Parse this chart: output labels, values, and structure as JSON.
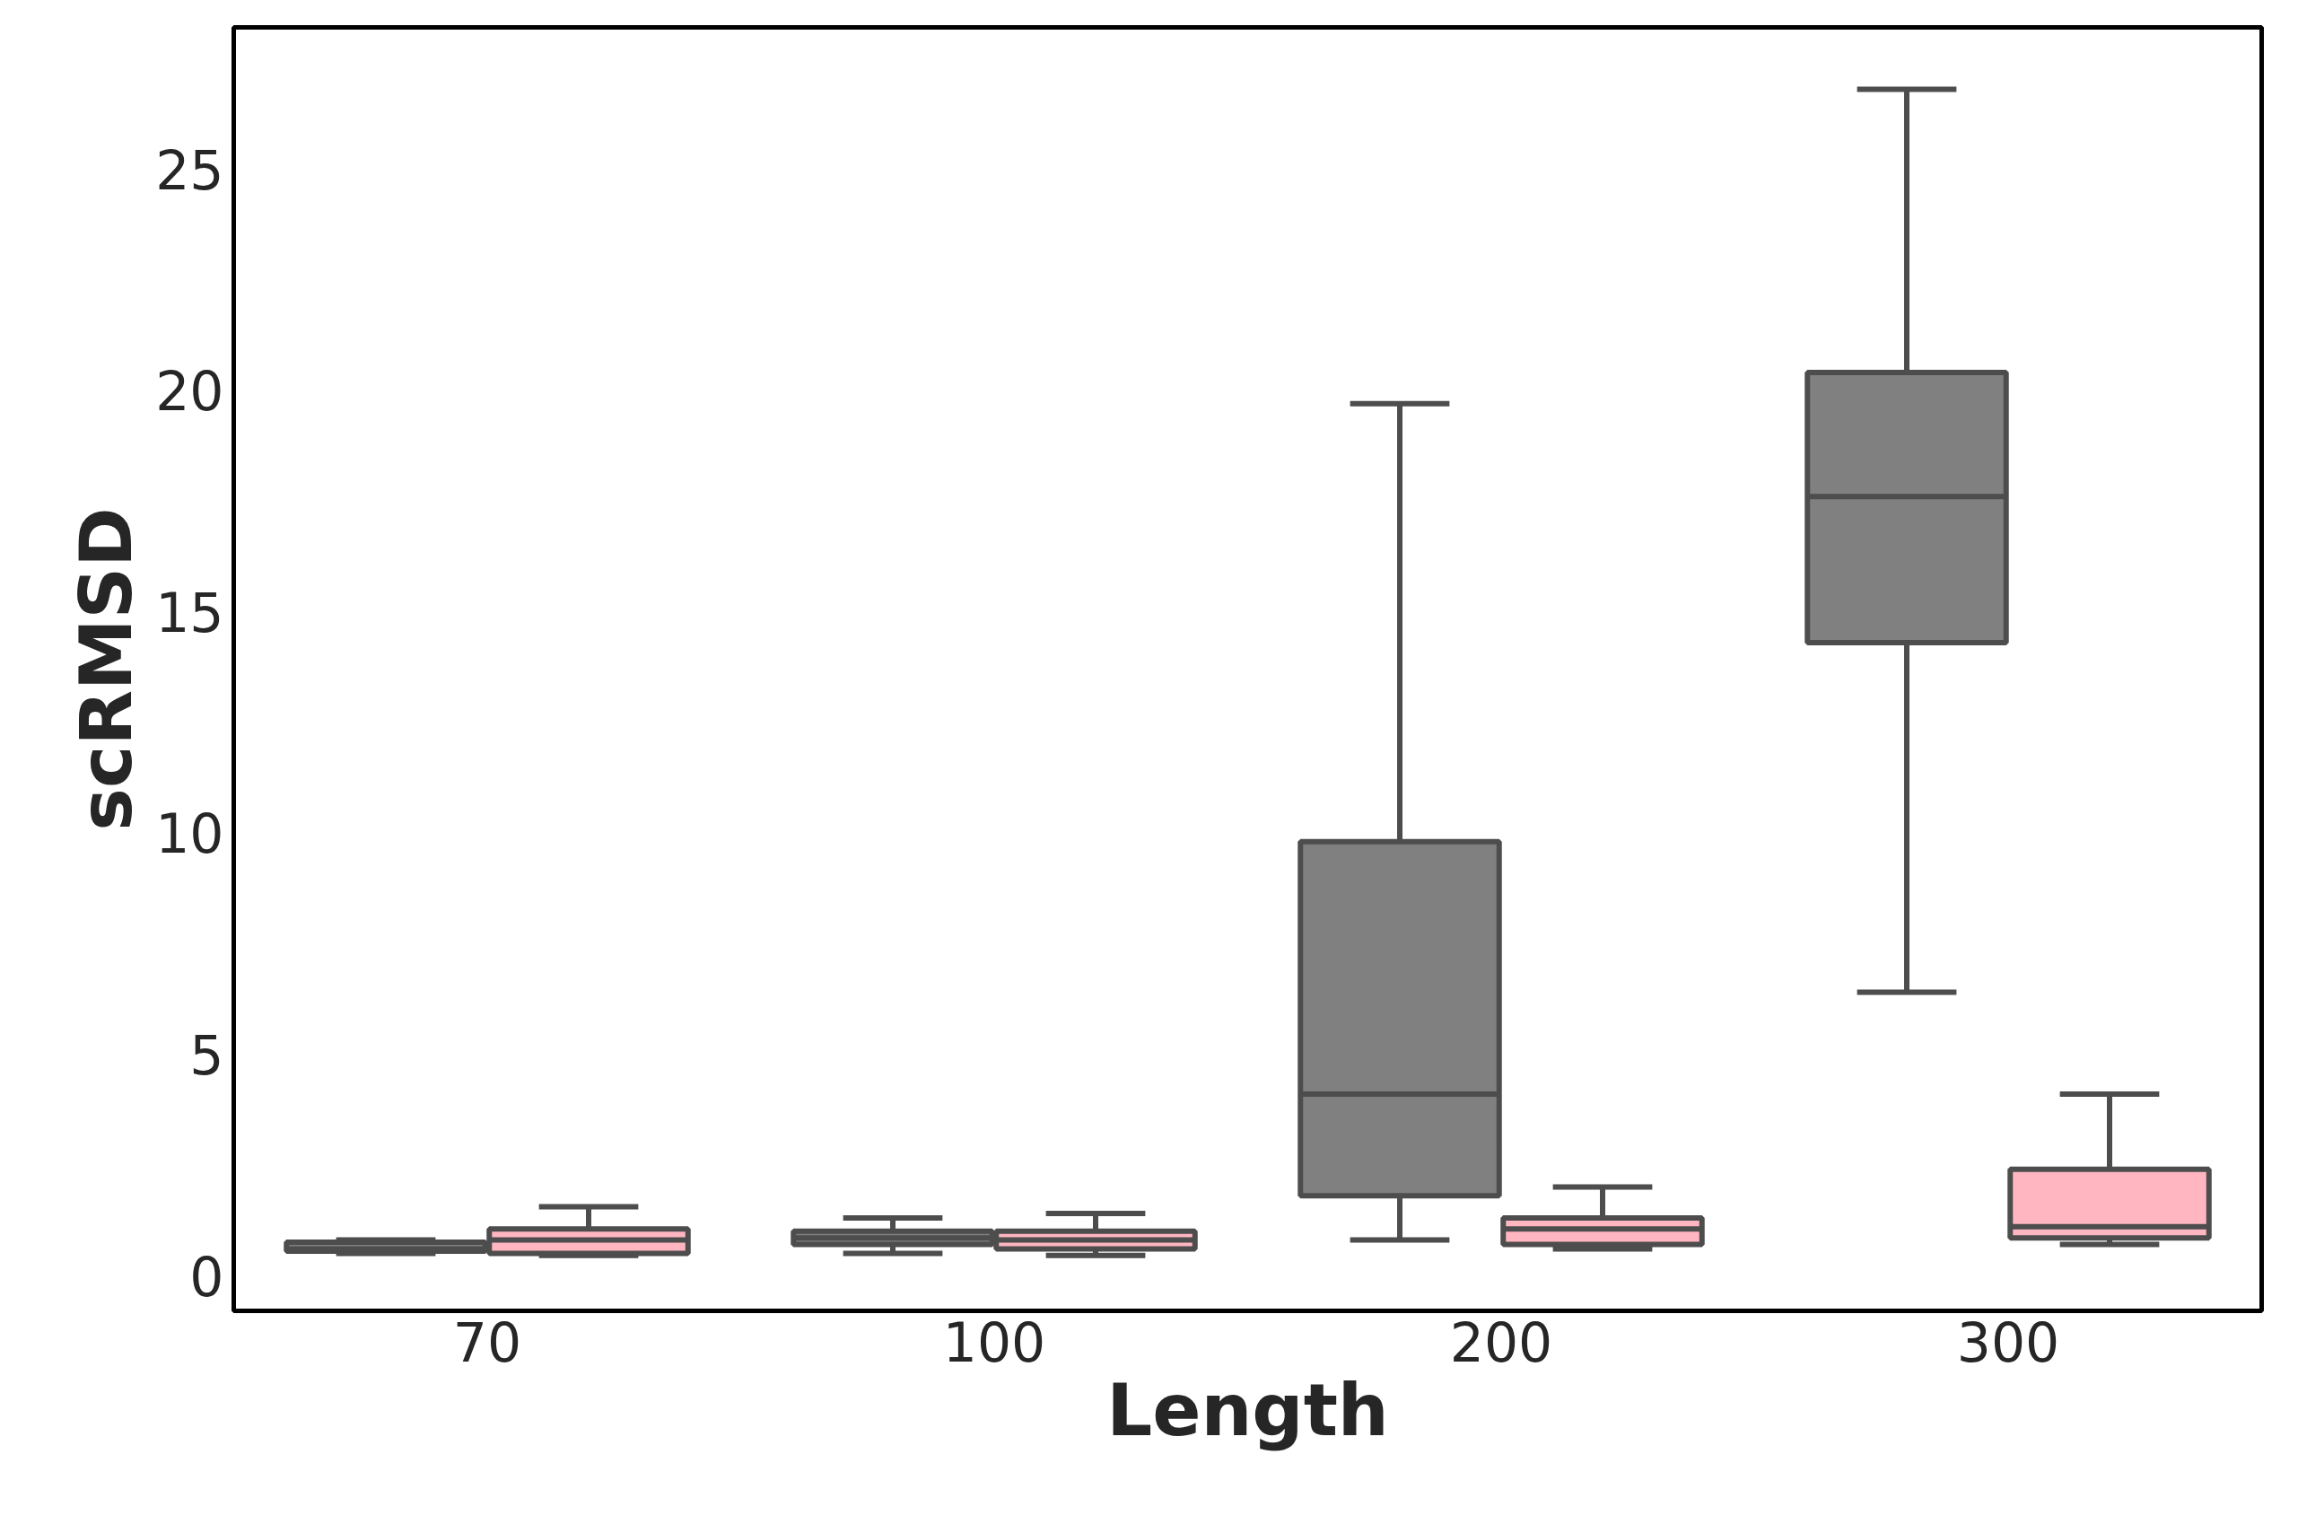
{
  "chart_data": {
    "type": "box",
    "xlabel": "Length",
    "ylabel": "scRMSD",
    "categories": [
      "70",
      "100",
      "200",
      "300"
    ],
    "ylim": [
      -0.8,
      28.2
    ],
    "yticks": [
      0,
      5,
      10,
      15,
      20,
      25
    ],
    "grid": false,
    "series": [
      {
        "color": "#808080",
        "boxes": [
          {
            "low": 0.5,
            "q1": 0.55,
            "median": 0.6,
            "q3": 0.75,
            "high": 0.8
          },
          {
            "low": 0.5,
            "q1": 0.7,
            "median": 0.85,
            "q3": 1.0,
            "high": 1.3
          },
          {
            "low": 0.8,
            "q1": 1.8,
            "median": 4.1,
            "q3": 9.8,
            "high": 19.7
          },
          {
            "low": 6.4,
            "q1": 14.3,
            "median": 17.6,
            "q3": 20.4,
            "high": 26.8
          }
        ]
      },
      {
        "color": "#ffb6c1",
        "boxes": [
          {
            "low": 0.45,
            "q1": 0.5,
            "median": 0.8,
            "q3": 1.05,
            "high": 1.55
          },
          {
            "low": 0.45,
            "q1": 0.6,
            "median": 0.8,
            "q3": 1.0,
            "high": 1.4
          },
          {
            "low": 0.6,
            "q1": 0.7,
            "median": 1.05,
            "q3": 1.3,
            "high": 2.0
          },
          {
            "low": 0.7,
            "q1": 0.85,
            "median": 1.1,
            "q3": 2.4,
            "high": 4.1
          }
        ]
      }
    ]
  }
}
